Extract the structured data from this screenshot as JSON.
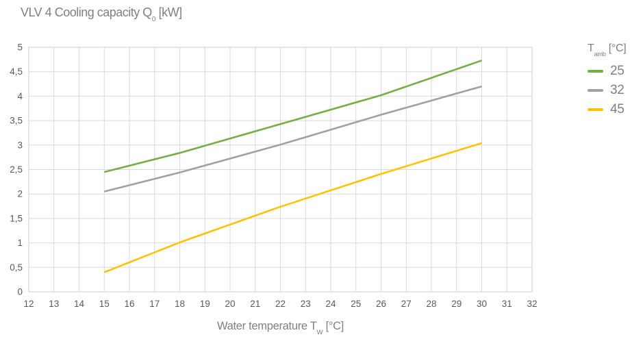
{
  "title": {
    "prefix": "VLV 4 Cooling capacity Q",
    "sub": "0",
    "suffix": " [kW]"
  },
  "x_axis_label": {
    "prefix": "Water temperature T",
    "sub": "W",
    "suffix": " [°C]"
  },
  "legend": {
    "title_prefix": "T",
    "title_sub": "amb",
    "title_suffix": " [°C]",
    "items": [
      {
        "label": "25",
        "color": "#72b043"
      },
      {
        "label": "32",
        "color": "#a1a1a0"
      },
      {
        "label": "45",
        "color": "#fdc300"
      }
    ]
  },
  "colors": {
    "gridline": "#d9d9d9",
    "plot_border": "#d5d5d5",
    "tick_text": "#58595c",
    "axis_text": "#7e8083",
    "background": "#ffffff"
  },
  "chart_data": {
    "type": "line",
    "title": "VLV 4 Cooling capacity Q0 [kW]",
    "xlabel": "Water temperature TW [°C]",
    "ylabel": "",
    "legend_title": "Tamb [°C]",
    "legend_position": "right",
    "grid": true,
    "xlim": [
      12,
      32
    ],
    "ylim": [
      0,
      5
    ],
    "x_ticks": [
      12,
      13,
      14,
      15,
      16,
      17,
      18,
      19,
      20,
      21,
      22,
      23,
      24,
      25,
      26,
      27,
      28,
      29,
      30,
      31,
      32
    ],
    "y_tick_values": [
      0,
      0.5,
      1,
      1.5,
      2,
      2.5,
      3,
      3.5,
      4,
      4.5,
      5
    ],
    "y_tick_labels": [
      "0",
      "0,5",
      "1",
      "1,5",
      "2",
      "2,5",
      "3",
      "3,5",
      "4",
      "4,5",
      "5"
    ],
    "series": [
      {
        "name": "25",
        "color": "#72b043",
        "points": [
          [
            15,
            2.45
          ],
          [
            18,
            2.84
          ],
          [
            22,
            3.43
          ],
          [
            26,
            4.02
          ],
          [
            30,
            4.73
          ]
        ]
      },
      {
        "name": "32",
        "color": "#a1a1a0",
        "points": [
          [
            15,
            2.05
          ],
          [
            18,
            2.44
          ],
          [
            22,
            3.01
          ],
          [
            26,
            3.62
          ],
          [
            30,
            4.2
          ]
        ]
      },
      {
        "name": "45",
        "color": "#fdc300",
        "points": [
          [
            15,
            0.4
          ],
          [
            18,
            1.01
          ],
          [
            22,
            1.74
          ],
          [
            26,
            2.41
          ],
          [
            30,
            3.04
          ]
        ]
      }
    ]
  }
}
